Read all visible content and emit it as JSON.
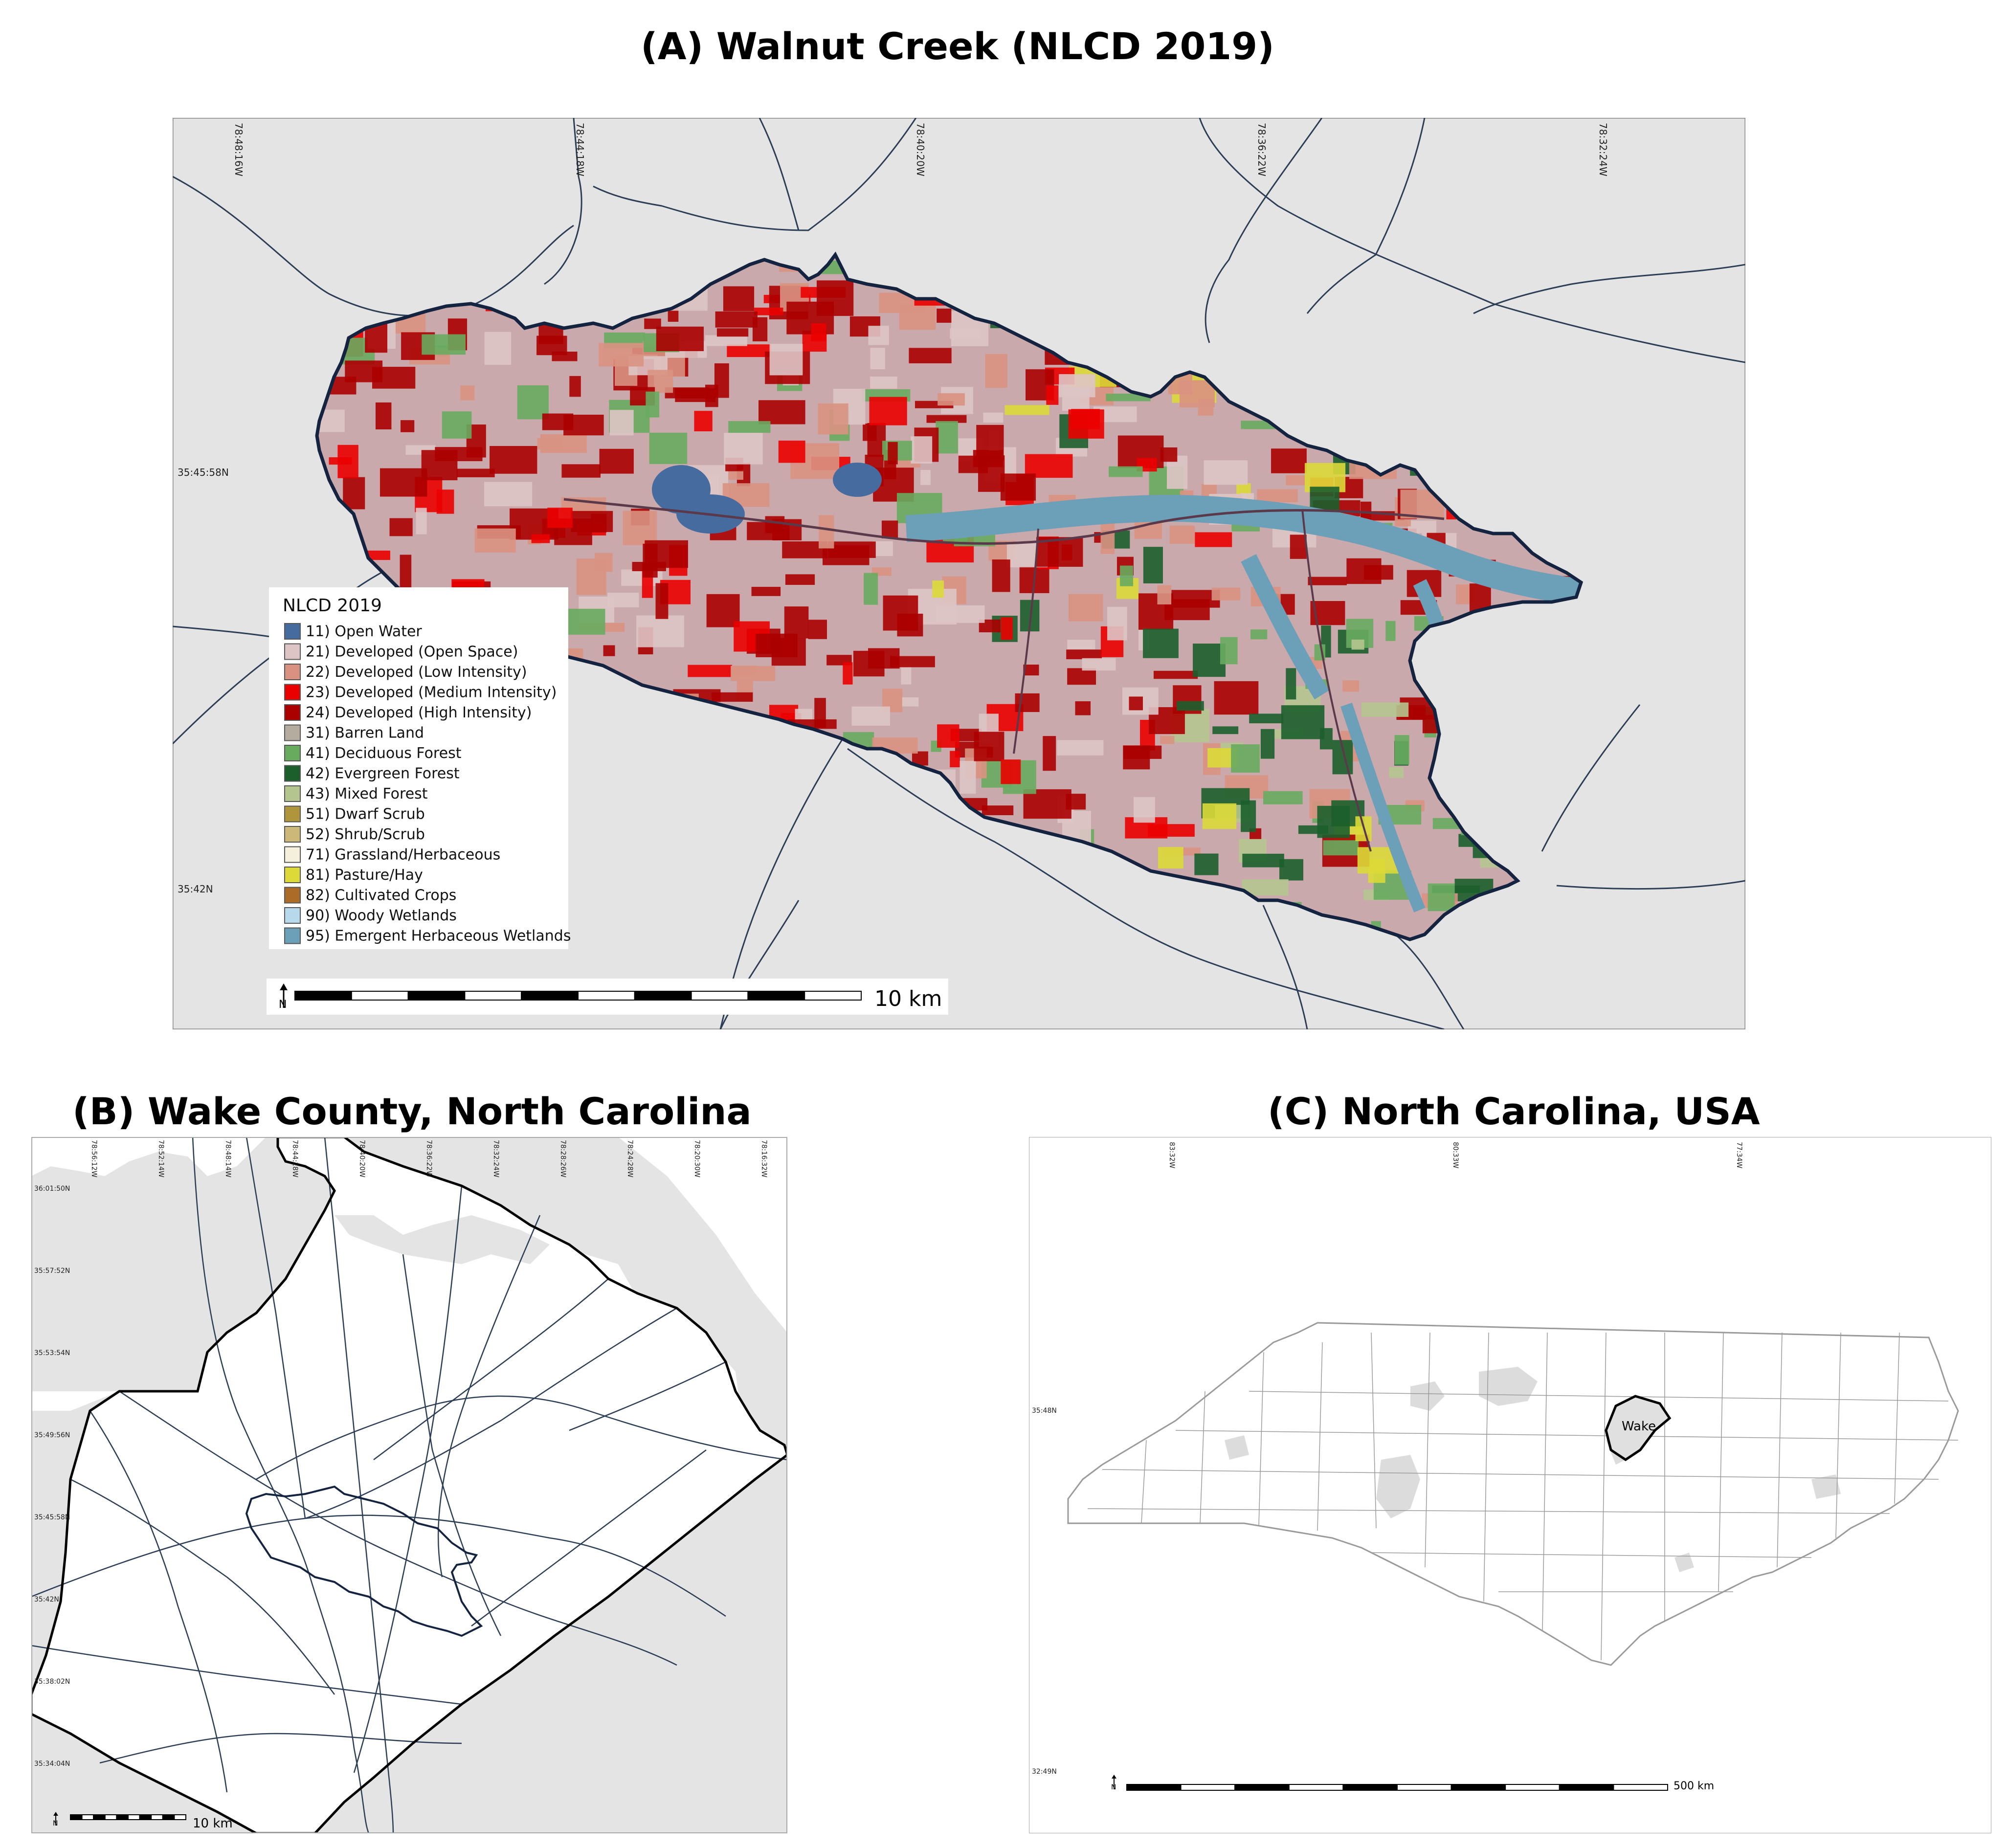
{
  "panel_a": {
    "title": "(A) Walnut Creek (NLCD 2019)",
    "lon_labels": [
      "78:48:16W",
      "78:44:18W",
      "78:40:20W",
      "78:36:22W",
      "78:32:24W"
    ],
    "lat_labels": [
      "35:45:58N",
      "35:42N"
    ],
    "legend": {
      "title": "NLCD 2019",
      "items": [
        {
          "label": "11) Open Water",
          "color": "#466b9f"
        },
        {
          "label": "21) Developed (Open Space)",
          "color": "#dec5c5"
        },
        {
          "label": "22) Developed (Low Intensity)",
          "color": "#d99282"
        },
        {
          "label": "23) Developed (Medium Intensity)",
          "color": "#eb0000"
        },
        {
          "label": "24) Developed (High Intensity)",
          "color": "#ab0000"
        },
        {
          "label": "31) Barren Land",
          "color": "#b3ac9f"
        },
        {
          "label": "41) Deciduous Forest",
          "color": "#68ab5f"
        },
        {
          "label": "42) Evergreen Forest",
          "color": "#1c5f2c"
        },
        {
          "label": "43) Mixed Forest",
          "color": "#b5c58f"
        },
        {
          "label": "51) Dwarf Scrub",
          "color": "#af963c"
        },
        {
          "label": "52) Shrub/Scrub",
          "color": "#ccb879"
        },
        {
          "label": "71) Grassland/Herbaceous",
          "color": "#f5f0dc"
        },
        {
          "label": "81) Pasture/Hay",
          "color": "#dcd939"
        },
        {
          "label": "82) Cultivated Crops",
          "color": "#ab6c28"
        },
        {
          "label": "90) Woody Wetlands",
          "color": "#b8d9eb"
        },
        {
          "label": "95) Emergent Herbaceous Wetlands",
          "color": "#6c9fb8"
        }
      ]
    },
    "scale_label": "10 km",
    "north_icon": "north-arrow-icon"
  },
  "panel_b": {
    "title": "(B) Wake County, North Carolina",
    "lon_labels": [
      "78:56:12W",
      "78:52:14W",
      "78:48:14W",
      "78:44:18W",
      "78:40:20W",
      "78:36:22W",
      "78:32:24W",
      "78:28:26W",
      "78:24:28W",
      "78:20:30W",
      "78:16:32W"
    ],
    "lat_labels": [
      "36:01:50N",
      "35:57:52N",
      "35:53:54N",
      "35:49:56N",
      "35:45:58N",
      "35:42N",
      "35:38:02N",
      "35:34:04N"
    ],
    "scale_label": "10 km"
  },
  "panel_c": {
    "title": "(C) North Carolina, USA",
    "lon_labels": [
      "83:32W",
      "80:33W",
      "77:34W"
    ],
    "lat_labels": [
      "35:48N",
      "32:49N"
    ],
    "county_label": "Wake",
    "scale_label": "500 km"
  },
  "colors": {
    "map_background": "#e4e4e4",
    "road": "#2c3e55",
    "watershed_outline": "#14233f",
    "county_outline": "#000000"
  }
}
